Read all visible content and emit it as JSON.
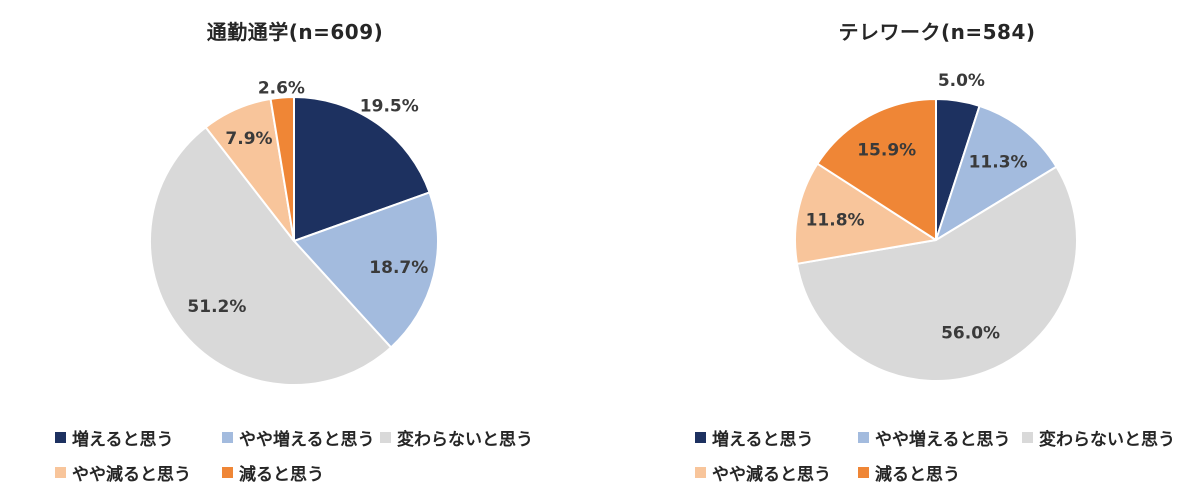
{
  "page": {
    "background": "#ffffff"
  },
  "segment_colors": {
    "increase": "#1d3160",
    "somewhat_increase": "#a3bbde",
    "no_change": "#d9d9d9",
    "somewhat_decrease": "#f8c59b",
    "decrease": "#ef8636"
  },
  "chart_data": [
    {
      "type": "pie",
      "title": "通勤通学(n=609)",
      "sample_size": 609,
      "categories": [
        "増えると思う",
        "やや増えると思う",
        "変わらないと思う",
        "やや減ると思う",
        "減ると思う"
      ],
      "values": [
        19.5,
        18.7,
        51.2,
        7.9,
        2.6
      ],
      "unit": "%",
      "colors": [
        "#1d3160",
        "#a3bbde",
        "#d9d9d9",
        "#f8c59b",
        "#ef8636"
      ],
      "start_angle_deg": 0,
      "direction": "clockwise",
      "label_format": "{value}%",
      "label_placement": [
        {
          "position": "outside",
          "radius_factor": 1.15
        },
        {
          "position": "inside",
          "radius_factor": 0.75
        },
        {
          "position": "inside",
          "radius_factor": 0.7
        },
        {
          "position": "inside",
          "radius_factor": 0.78
        },
        {
          "position": "outside",
          "radius_factor": 1.07
        }
      ],
      "legend": {
        "position": "bottom-left",
        "rows": [
          [
            0,
            1,
            2
          ],
          [
            3,
            4
          ]
        ]
      }
    },
    {
      "type": "pie",
      "title": "テレワーク(n=584)",
      "sample_size": 584,
      "categories": [
        "増えると思う",
        "やや増えると思う",
        "変わらないと思う",
        "やや減ると思う",
        "減ると思う"
      ],
      "values": [
        5.0,
        11.3,
        56.0,
        11.8,
        15.9
      ],
      "unit": "%",
      "colors": [
        "#1d3160",
        "#a3bbde",
        "#d9d9d9",
        "#f8c59b",
        "#ef8636"
      ],
      "start_angle_deg": 0,
      "direction": "clockwise",
      "label_format": "{value}%",
      "label_placement": [
        {
          "position": "outside",
          "radius_factor": 1.15
        },
        {
          "position": "inside",
          "radius_factor": 0.71
        },
        {
          "position": "inside",
          "radius_factor": 0.7
        },
        {
          "position": "inside",
          "radius_factor": 0.73
        },
        {
          "position": "inside",
          "radius_factor": 0.73
        }
      ],
      "legend": {
        "position": "bottom-left",
        "rows": [
          [
            0,
            1,
            2
          ],
          [
            3,
            4
          ]
        ]
      }
    }
  ]
}
